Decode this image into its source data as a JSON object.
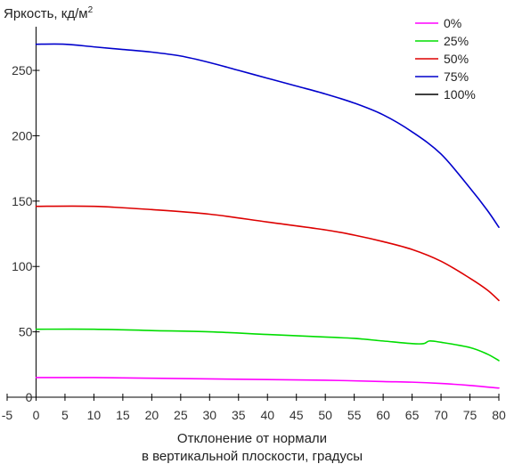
{
  "chart_data": {
    "type": "line",
    "ylabel": "Яркость, кд/м",
    "ylabel_sup": "2",
    "xlabel_line1": "Отклонение от нормали",
    "xlabel_line2": "в вертикальной плоскости, градусы",
    "xlim": [
      -5,
      80
    ],
    "ylim": [
      0,
      280
    ],
    "x_ticks": [
      -5,
      0,
      5,
      10,
      15,
      20,
      25,
      30,
      35,
      40,
      45,
      50,
      55,
      60,
      65,
      70,
      75,
      80
    ],
    "y_ticks": [
      0,
      50,
      100,
      150,
      200,
      250
    ],
    "grid": false,
    "legend_position": "top-right",
    "series": [
      {
        "name": "0%",
        "color": "#ff00ff",
        "x": [
          0,
          10,
          20,
          30,
          40,
          50,
          60,
          65,
          70,
          75,
          80
        ],
        "y": [
          15,
          15,
          14.5,
          14,
          13.5,
          13,
          12,
          11.5,
          10.5,
          9,
          7
        ]
      },
      {
        "name": "25%",
        "color": "#00dd00",
        "x": [
          0,
          10,
          20,
          30,
          40,
          50,
          55,
          60,
          65,
          67,
          68,
          70,
          75,
          78,
          80
        ],
        "y": [
          52,
          52,
          51,
          50,
          48,
          46,
          45,
          43,
          41,
          41,
          43,
          42,
          38,
          33,
          28
        ]
      },
      {
        "name": "50%",
        "color": "#dd0000",
        "x": [
          0,
          10,
          20,
          30,
          40,
          50,
          55,
          60,
          65,
          70,
          75,
          78,
          80
        ],
        "y": [
          146,
          146,
          143.5,
          140,
          134,
          128,
          124,
          119,
          113,
          104,
          91,
          82,
          74
        ]
      },
      {
        "name": "75%",
        "color": "#0000cc",
        "x": [
          0,
          5,
          10,
          15,
          20,
          25,
          30,
          35,
          40,
          45,
          50,
          55,
          60,
          65,
          70,
          75,
          78,
          80
        ],
        "y": [
          270,
          270,
          268,
          266,
          264,
          261,
          256,
          250,
          244,
          238,
          232,
          225,
          216,
          203,
          186,
          160,
          143,
          130
        ]
      },
      {
        "name": "100%",
        "color": "#000000",
        "x": [],
        "y": []
      }
    ]
  }
}
